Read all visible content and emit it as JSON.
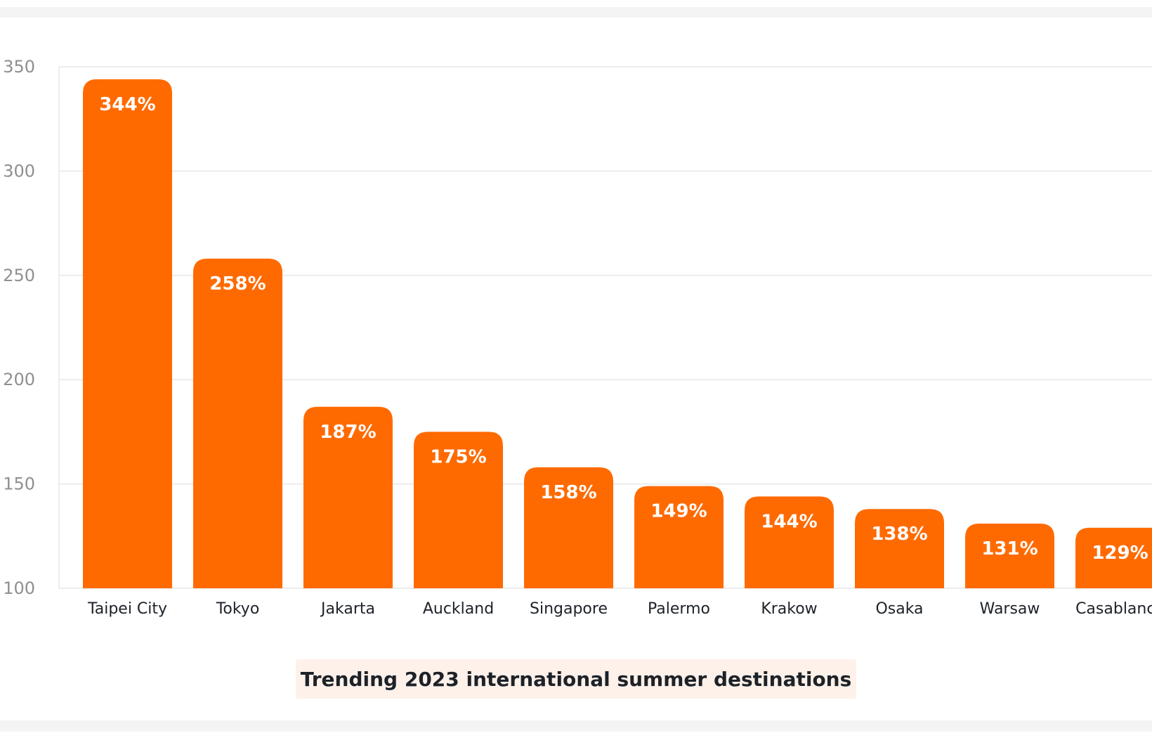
{
  "chart_data": {
    "type": "bar",
    "title": "Trending 2023 international summer destinations",
    "categories": [
      "Taipei City",
      "Tokyo",
      "Jakarta",
      "Auckland",
      "Singapore",
      "Palermo",
      "Krakow",
      "Osaka",
      "Warsaw",
      "Casablanca"
    ],
    "values": [
      344,
      258,
      187,
      175,
      158,
      149,
      144,
      138,
      131,
      129
    ],
    "data_labels": [
      "344%",
      "258%",
      "187%",
      "175%",
      "158%",
      "149%",
      "144%",
      "138%",
      "131%",
      "129%"
    ],
    "ylim": [
      100,
      350
    ],
    "yticks": [
      100,
      150,
      200,
      250,
      300,
      350
    ],
    "grid": true,
    "bar_color": "#ff6a00",
    "xlabel": "",
    "ylabel": ""
  }
}
